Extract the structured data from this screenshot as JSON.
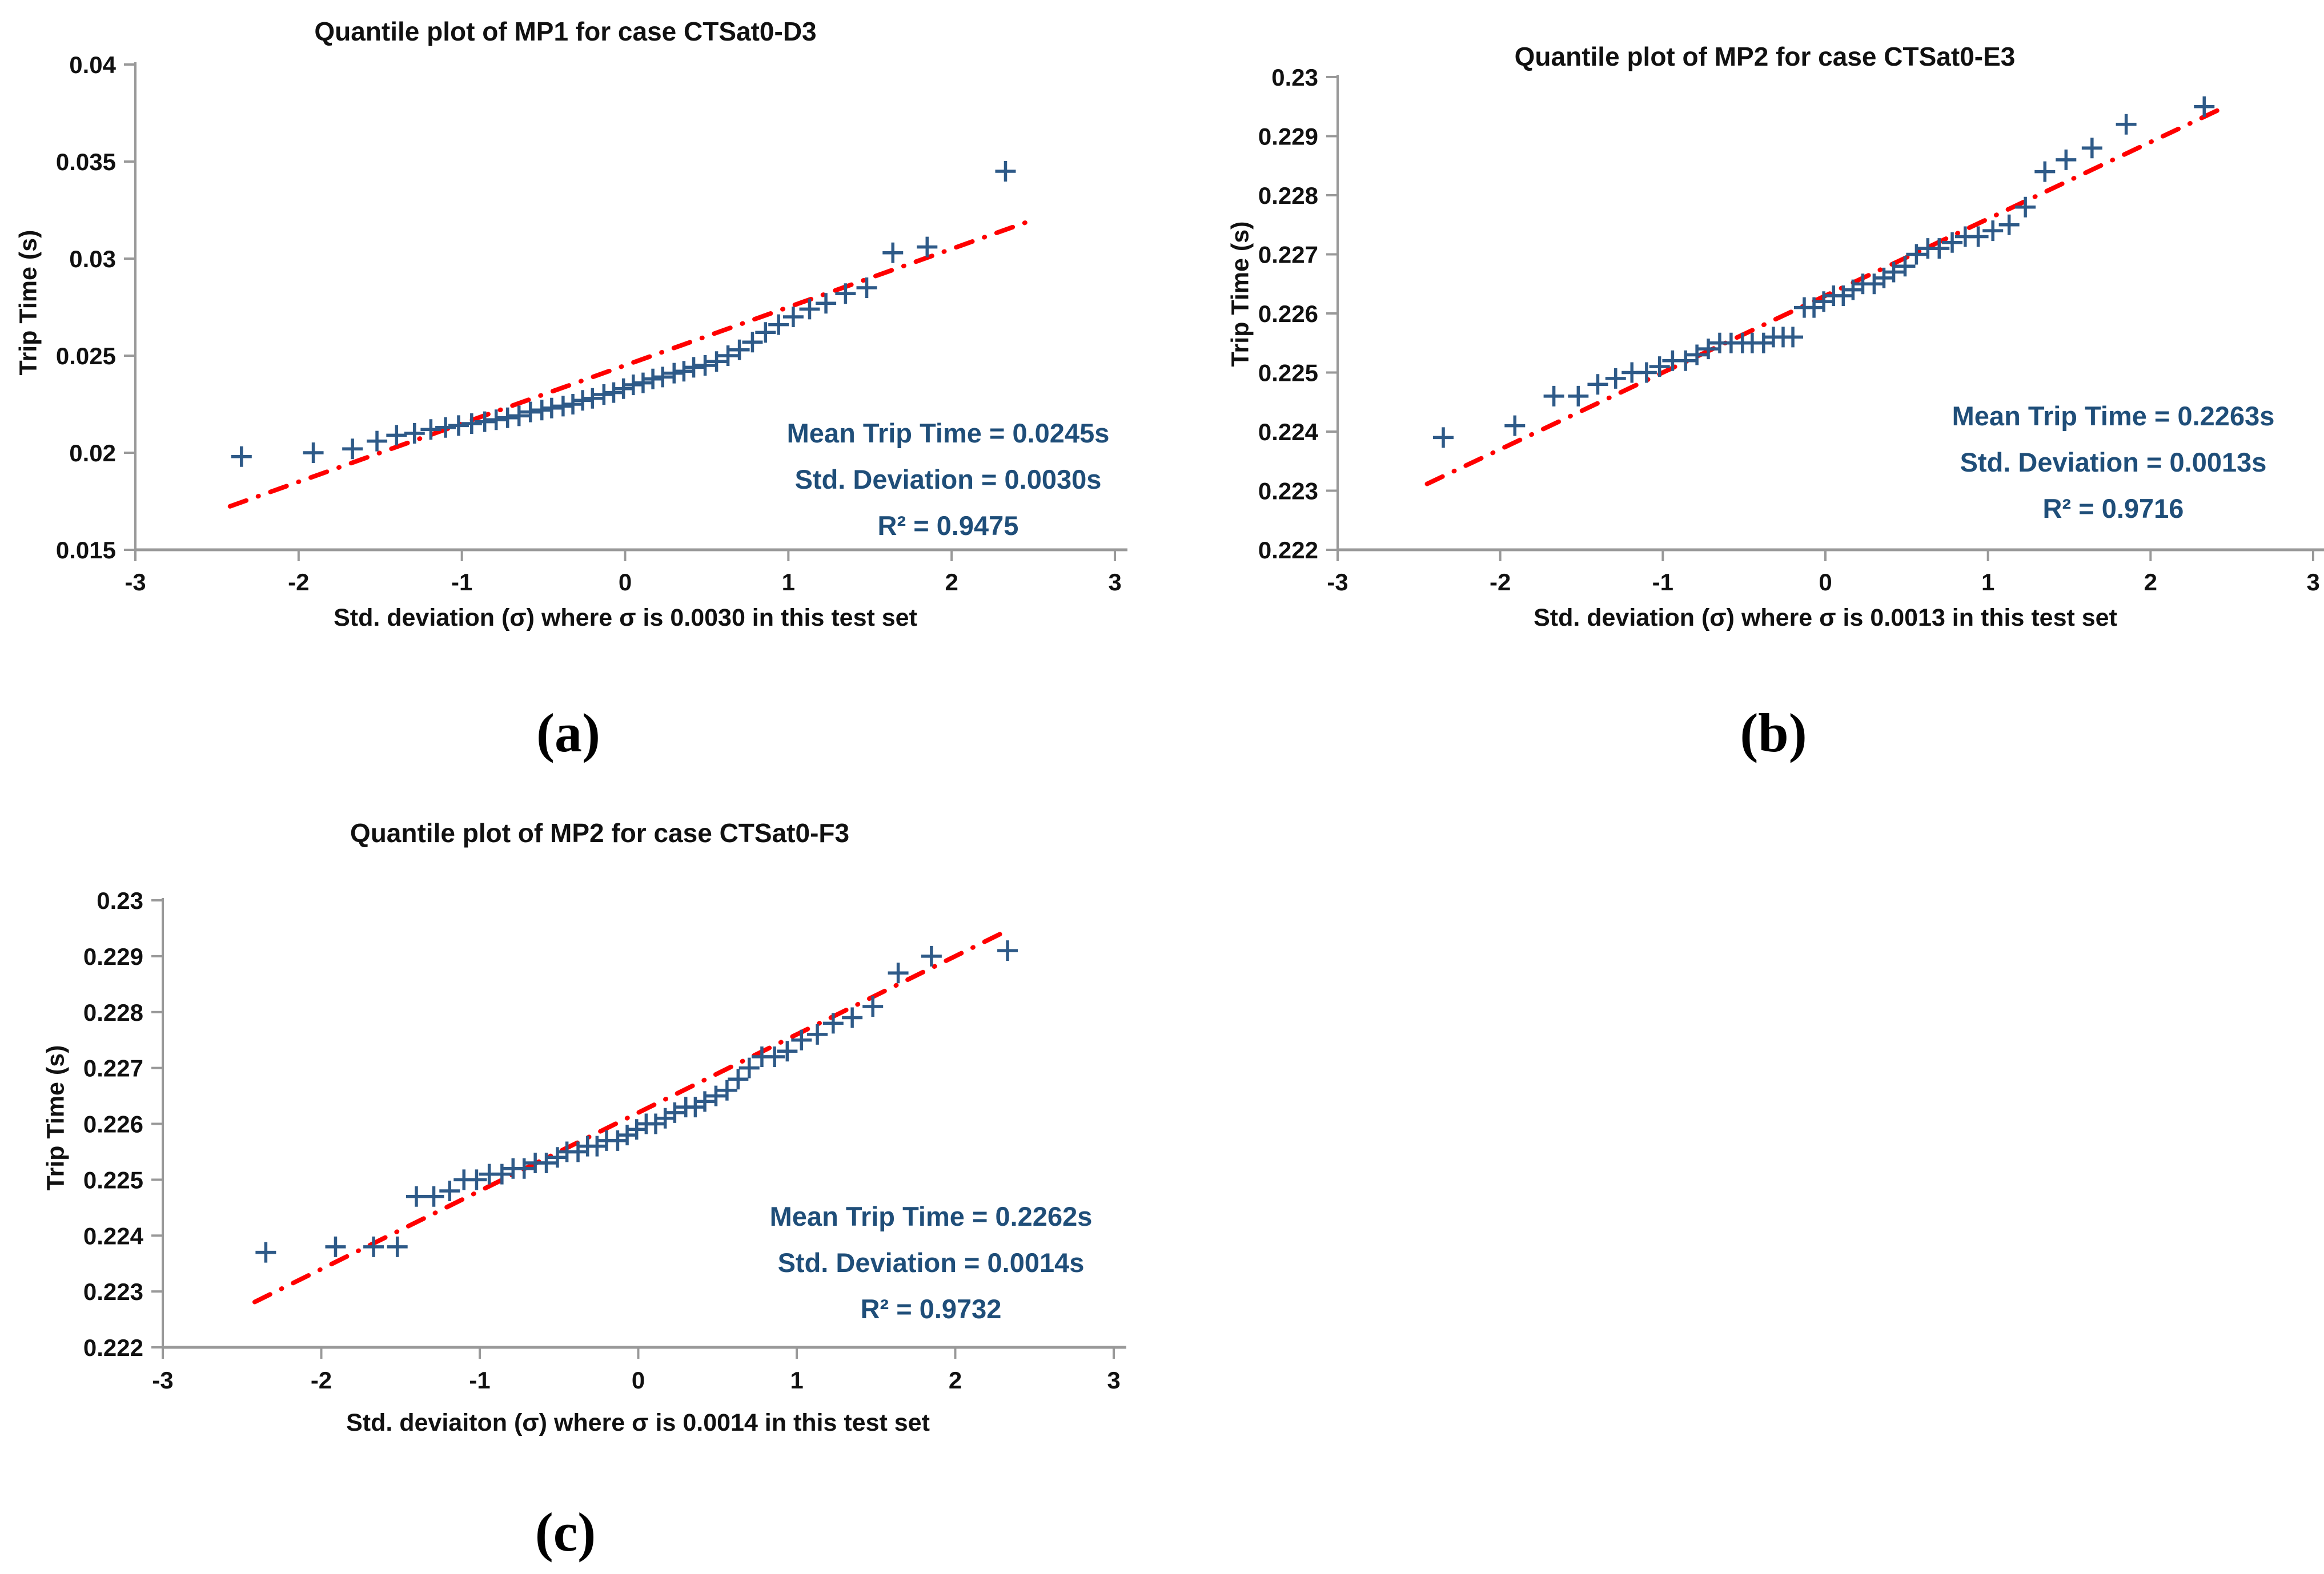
{
  "colors": {
    "marker": "#2E5A88",
    "trend_line": "#FF0000",
    "annotation_text": "#1F4E79",
    "axis_line": "#999999",
    "tick_text": "#111111"
  },
  "panel_labels": [
    {
      "label": "(a)"
    },
    {
      "label": "(b)"
    },
    {
      "label": "(c)"
    }
  ],
  "chart_data": [
    {
      "id": "a",
      "type": "scatter",
      "title": "Quantile plot of MP1 for case CTSat0-D3",
      "xlabel": "Std. deviation (σ) where σ is 0.0030 in this test set",
      "ylabel": "Trip Time (s)",
      "xlim": [
        -3,
        3
      ],
      "ylim": [
        0.015,
        0.04
      ],
      "xtick_values": [
        -3,
        -2,
        -1,
        0,
        1,
        2,
        3
      ],
      "xtick_labels": [
        "-3",
        "-2",
        "-1",
        "0",
        "1",
        "2",
        "3"
      ],
      "ytick_values": [
        0.015,
        0.02,
        0.025,
        0.03,
        0.035,
        0.04
      ],
      "ytick_labels": [
        "0.015",
        "0.02",
        "0.025",
        "0.03",
        "0.035",
        "0.04"
      ],
      "grid": false,
      "legend": "none",
      "annotation": [
        "Mean Trip Time = 0.0245s",
        "Std. Deviation = 0.0030s",
        "R² = 0.9475"
      ],
      "mean_trip_time_s": 0.0245,
      "std_deviation_s": 0.003,
      "r_squared": 0.9475,
      "trend_line": {
        "style": "dash-dot",
        "x_start": -2.42,
        "x_end": 2.48
      },
      "points": [
        [
          -2.35,
          0.0198
        ],
        [
          -1.91,
          0.02
        ],
        [
          -1.67,
          0.0202
        ],
        [
          -1.52,
          0.0206
        ],
        [
          -1.4,
          0.0209
        ],
        [
          -1.29,
          0.021
        ],
        [
          -1.19,
          0.0212
        ],
        [
          -1.1,
          0.0213
        ],
        [
          -1.02,
          0.0214
        ],
        [
          -0.94,
          0.0215
        ],
        [
          -0.86,
          0.0216
        ],
        [
          -0.79,
          0.0217
        ],
        [
          -0.72,
          0.0218
        ],
        [
          -0.65,
          0.0219
        ],
        [
          -0.58,
          0.0221
        ],
        [
          -0.51,
          0.0222
        ],
        [
          -0.45,
          0.0223
        ],
        [
          -0.38,
          0.0224
        ],
        [
          -0.32,
          0.0225
        ],
        [
          -0.26,
          0.0227
        ],
        [
          -0.2,
          0.0228
        ],
        [
          -0.13,
          0.023
        ],
        [
          -0.07,
          0.0231
        ],
        [
          -0.01,
          0.0233
        ],
        [
          0.05,
          0.0235
        ],
        [
          0.11,
          0.0236
        ],
        [
          0.17,
          0.0238
        ],
        [
          0.23,
          0.0239
        ],
        [
          0.3,
          0.0241
        ],
        [
          0.36,
          0.0242
        ],
        [
          0.42,
          0.0244
        ],
        [
          0.49,
          0.0245
        ],
        [
          0.56,
          0.0247
        ],
        [
          0.63,
          0.025
        ],
        [
          0.7,
          0.0253
        ],
        [
          0.78,
          0.0257
        ],
        [
          0.86,
          0.0262
        ],
        [
          0.94,
          0.0266
        ],
        [
          1.03,
          0.027
        ],
        [
          1.13,
          0.0274
        ],
        [
          1.23,
          0.0277
        ],
        [
          1.35,
          0.0282
        ],
        [
          1.48,
          0.0285
        ],
        [
          1.64,
          0.0303
        ],
        [
          1.85,
          0.0306
        ],
        [
          2.33,
          0.0345
        ]
      ]
    },
    {
      "id": "b",
      "type": "scatter",
      "title": "Quantile plot of MP2 for case CTSat0-E3",
      "xlabel": "Std. deviation (σ) where σ is 0.0013 in this test set",
      "ylabel": "Trip Time (s)",
      "xlim": [
        -3,
        3
      ],
      "ylim": [
        0.222,
        0.23
      ],
      "xtick_values": [
        -3,
        -2,
        -1,
        0,
        1,
        2,
        3
      ],
      "xtick_labels": [
        "-3",
        "-2",
        "-1",
        "0",
        "1",
        "2",
        "3"
      ],
      "ytick_values": [
        0.222,
        0.223,
        0.224,
        0.225,
        0.226,
        0.227,
        0.228,
        0.229,
        0.23
      ],
      "ytick_labels": [
        "0.222",
        "0.223",
        "0.224",
        "0.225",
        "0.226",
        "0.227",
        "0.228",
        "0.229",
        "0.23"
      ],
      "grid": false,
      "legend": "none",
      "annotation": [
        "Mean Trip Time = 0.2263s",
        "Std. Deviation = 0.0013s",
        "R² = 0.9716"
      ],
      "mean_trip_time_s": 0.2263,
      "std_deviation_s": 0.0013,
      "r_squared": 0.9716,
      "trend_line": {
        "style": "dash-dot",
        "x_start": -2.45,
        "x_end": 2.42
      },
      "points": [
        [
          -2.35,
          0.2239
        ],
        [
          -1.91,
          0.2241
        ],
        [
          -1.67,
          0.2246
        ],
        [
          -1.52,
          0.2246
        ],
        [
          -1.4,
          0.2248
        ],
        [
          -1.29,
          0.2249
        ],
        [
          -1.19,
          0.225
        ],
        [
          -1.1,
          0.225
        ],
        [
          -1.02,
          0.2251
        ],
        [
          -0.94,
          0.2252
        ],
        [
          -0.86,
          0.2252
        ],
        [
          -0.79,
          0.2253
        ],
        [
          -0.72,
          0.2254
        ],
        [
          -0.65,
          0.2255
        ],
        [
          -0.58,
          0.2255
        ],
        [
          -0.51,
          0.2255
        ],
        [
          -0.45,
          0.2255
        ],
        [
          -0.38,
          0.2255
        ],
        [
          -0.32,
          0.2256
        ],
        [
          -0.26,
          0.2256
        ],
        [
          -0.2,
          0.2256
        ],
        [
          -0.13,
          0.2261
        ],
        [
          -0.07,
          0.2261
        ],
        [
          -0.01,
          0.2262
        ],
        [
          0.05,
          0.2263
        ],
        [
          0.11,
          0.2263
        ],
        [
          0.17,
          0.2264
        ],
        [
          0.23,
          0.2265
        ],
        [
          0.3,
          0.2265
        ],
        [
          0.36,
          0.2266
        ],
        [
          0.42,
          0.2267
        ],
        [
          0.49,
          0.2268
        ],
        [
          0.56,
          0.227
        ],
        [
          0.63,
          0.2271
        ],
        [
          0.7,
          0.2271
        ],
        [
          0.78,
          0.2272
        ],
        [
          0.86,
          0.2273
        ],
        [
          0.94,
          0.2273
        ],
        [
          1.03,
          0.2274
        ],
        [
          1.13,
          0.2275
        ],
        [
          1.23,
          0.2278
        ],
        [
          1.35,
          0.2284
        ],
        [
          1.48,
          0.2286
        ],
        [
          1.64,
          0.2288
        ],
        [
          1.85,
          0.2292
        ],
        [
          2.33,
          0.2295
        ]
      ]
    },
    {
      "id": "c",
      "type": "scatter",
      "title": "Quantile plot of MP2 for case CTSat0-F3",
      "xlabel": "Std. deviaiton (σ) where σ is 0.0014 in this test set",
      "ylabel": "Trip Time (s)",
      "xlim": [
        -3,
        3
      ],
      "ylim": [
        0.222,
        0.23
      ],
      "xtick_values": [
        -3,
        -2,
        -1,
        0,
        1,
        2,
        3
      ],
      "xtick_labels": [
        "-3",
        "-2",
        "-1",
        "0",
        "1",
        "2",
        "3"
      ],
      "ytick_values": [
        0.222,
        0.223,
        0.224,
        0.225,
        0.226,
        0.227,
        0.228,
        0.229,
        0.23
      ],
      "ytick_labels": [
        "0.222",
        "0.223",
        "0.224",
        "0.225",
        "0.226",
        "0.227",
        "0.228",
        "0.229",
        "0.23"
      ],
      "grid": false,
      "legend": "none",
      "annotation": [
        "Mean Trip Time = 0.2262s",
        "Std. Deviation = 0.0014s",
        "R² = 0.9732"
      ],
      "mean_trip_time_s": 0.2262,
      "std_deviation_s": 0.0014,
      "r_squared": 0.9732,
      "trend_line": {
        "style": "dash-dot",
        "x_start": -2.42,
        "x_end": 2.3
      },
      "points": [
        [
          -2.35,
          0.2237
        ],
        [
          -1.91,
          0.2238
        ],
        [
          -1.67,
          0.2238
        ],
        [
          -1.52,
          0.2238
        ],
        [
          -1.4,
          0.2247
        ],
        [
          -1.29,
          0.2247
        ],
        [
          -1.19,
          0.2248
        ],
        [
          -1.1,
          0.225
        ],
        [
          -1.02,
          0.225
        ],
        [
          -0.94,
          0.2251
        ],
        [
          -0.86,
          0.2251
        ],
        [
          -0.79,
          0.2252
        ],
        [
          -0.72,
          0.2252
        ],
        [
          -0.65,
          0.2253
        ],
        [
          -0.58,
          0.2253
        ],
        [
          -0.51,
          0.2254
        ],
        [
          -0.45,
          0.2255
        ],
        [
          -0.38,
          0.2255
        ],
        [
          -0.32,
          0.2256
        ],
        [
          -0.26,
          0.2256
        ],
        [
          -0.2,
          0.2257
        ],
        [
          -0.13,
          0.2257
        ],
        [
          -0.07,
          0.2258
        ],
        [
          -0.01,
          0.2259
        ],
        [
          0.05,
          0.226
        ],
        [
          0.11,
          0.226
        ],
        [
          0.17,
          0.2261
        ],
        [
          0.23,
          0.2262
        ],
        [
          0.3,
          0.2263
        ],
        [
          0.36,
          0.2263
        ],
        [
          0.42,
          0.2264
        ],
        [
          0.49,
          0.2265
        ],
        [
          0.56,
          0.2266
        ],
        [
          0.63,
          0.2268
        ],
        [
          0.7,
          0.227
        ],
        [
          0.78,
          0.2272
        ],
        [
          0.86,
          0.2272
        ],
        [
          0.94,
          0.2273
        ],
        [
          1.03,
          0.2275
        ],
        [
          1.13,
          0.2276
        ],
        [
          1.23,
          0.2278
        ],
        [
          1.35,
          0.2279
        ],
        [
          1.48,
          0.2281
        ],
        [
          1.64,
          0.2287
        ],
        [
          1.85,
          0.229
        ],
        [
          2.33,
          0.2291
        ]
      ]
    }
  ]
}
